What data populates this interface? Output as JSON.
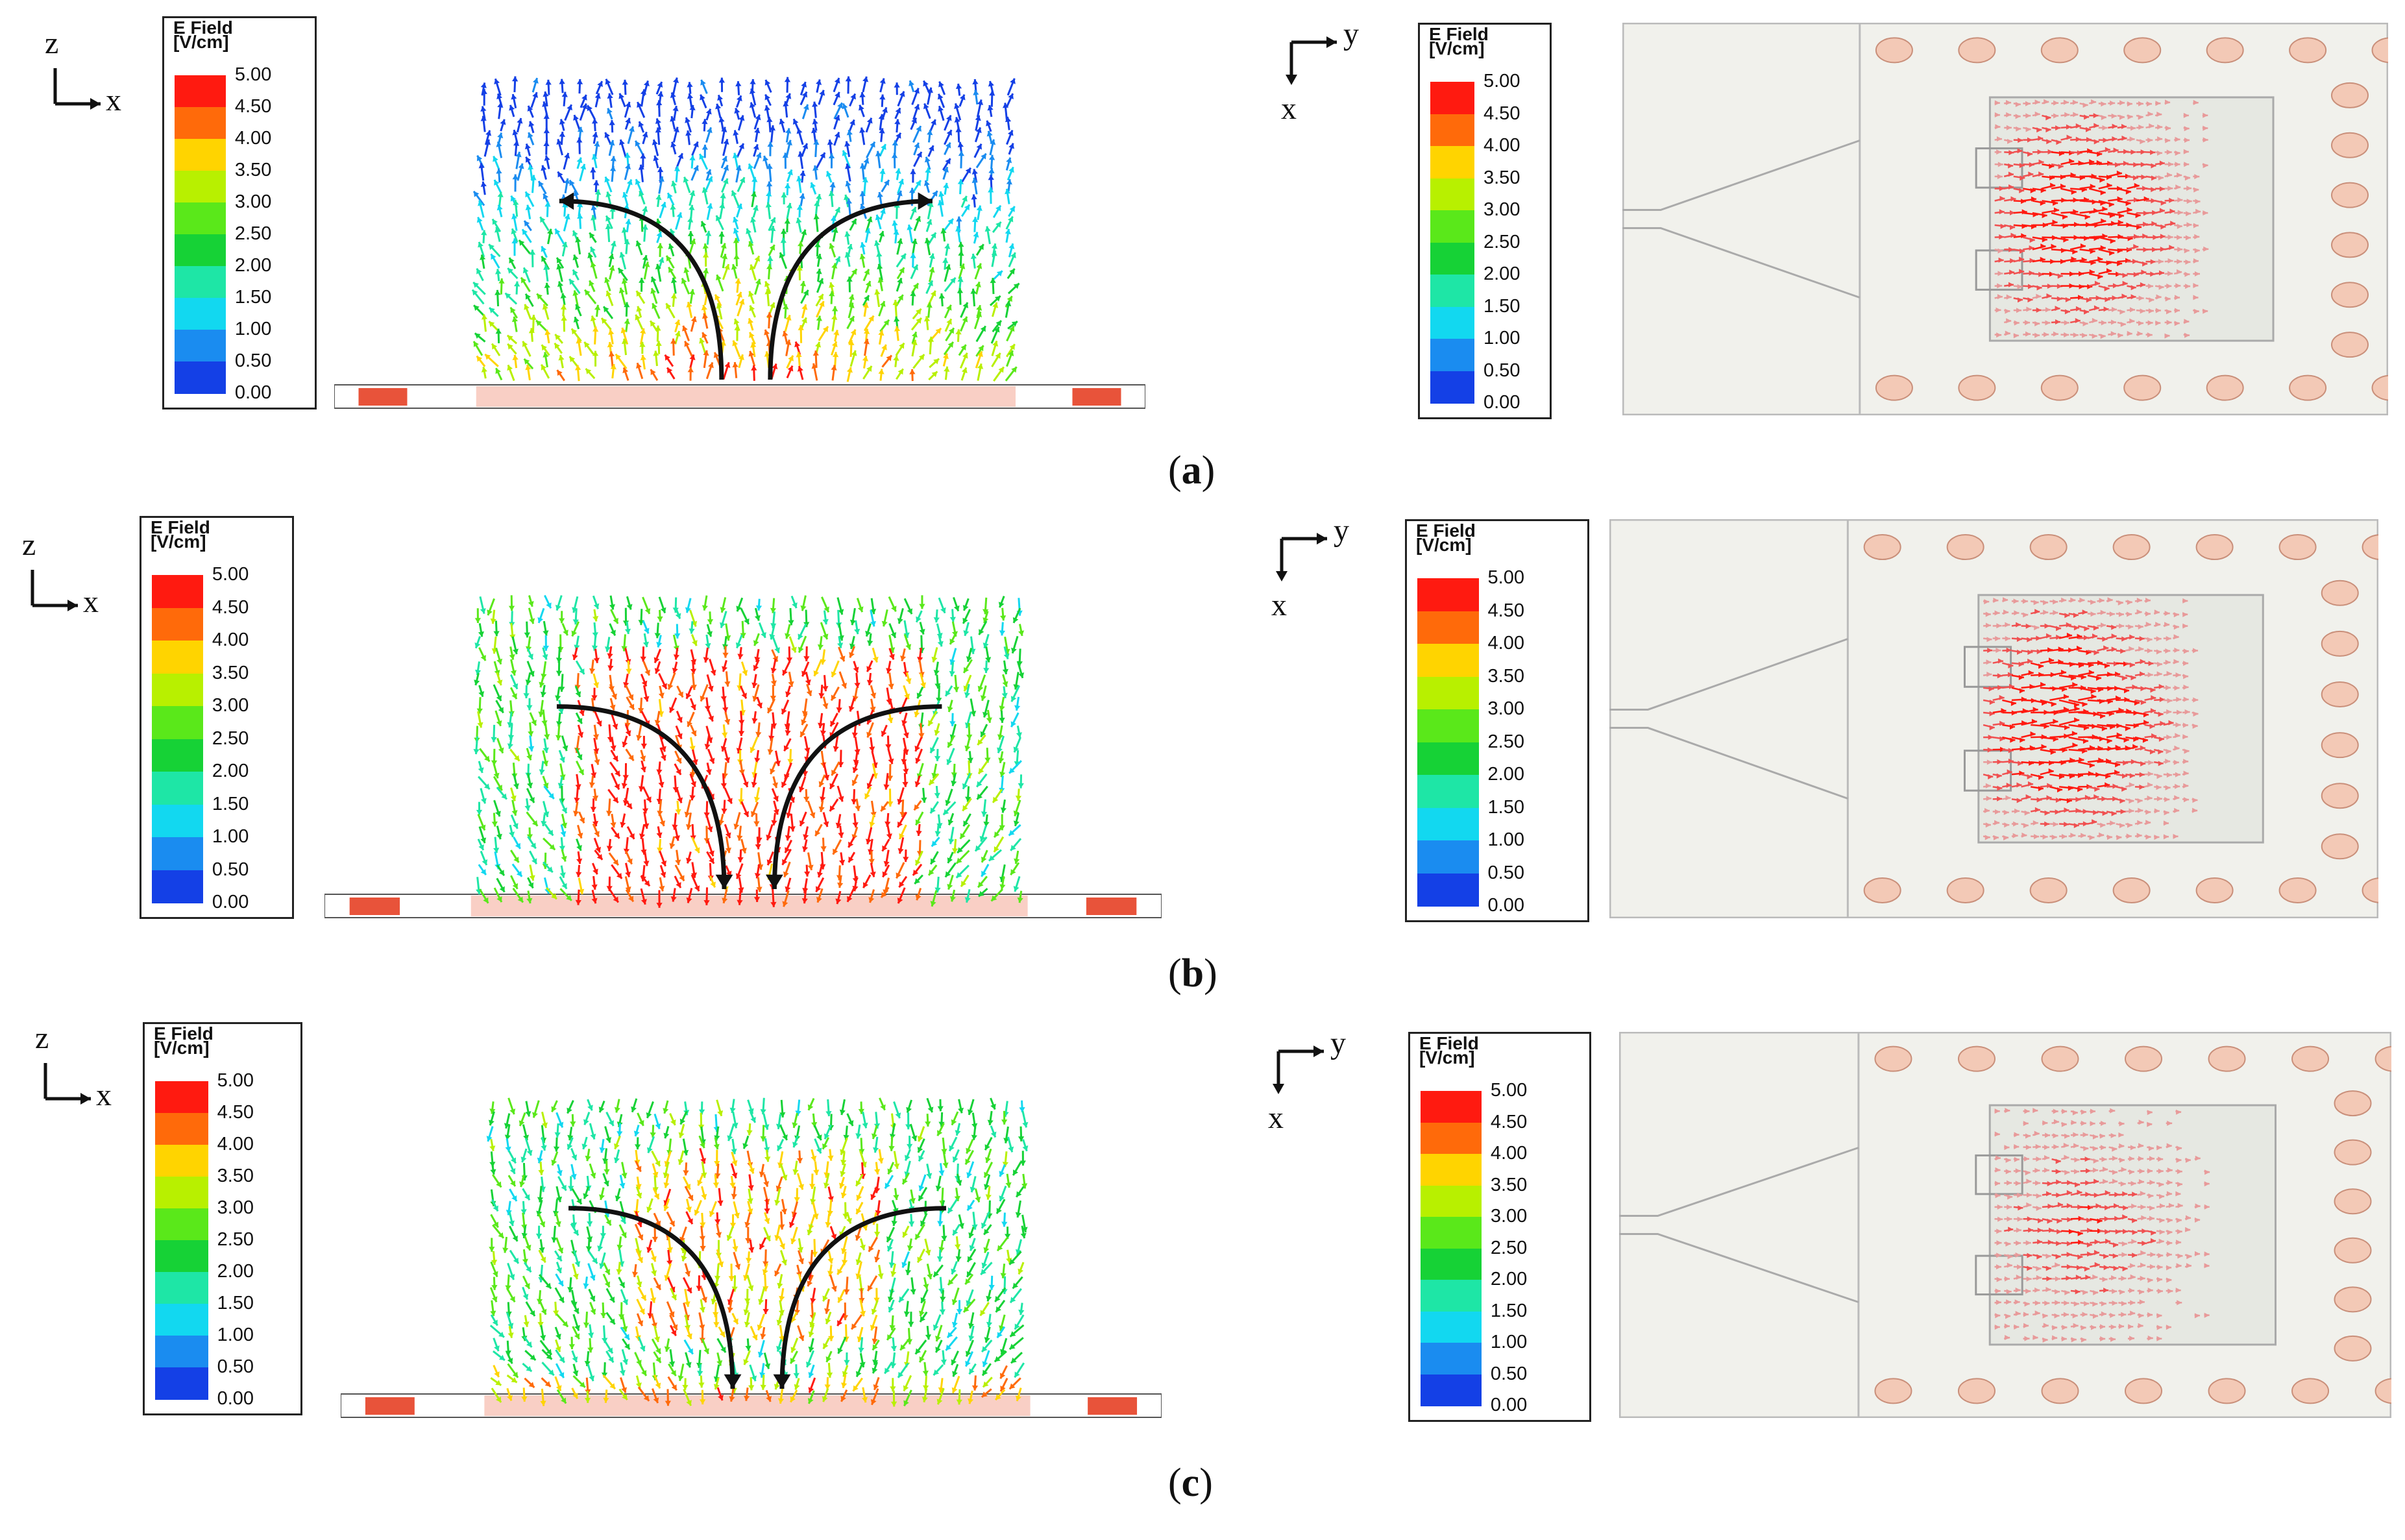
{
  "figure": {
    "legend": {
      "title_line1": "E Field",
      "title_line2": "[V/cm]",
      "ticks": [
        "5.00",
        "4.50",
        "4.00",
        "3.50",
        "3.00",
        "2.50",
        "2.00",
        "1.50",
        "1.00",
        "0.50",
        "0.00"
      ],
      "colors": [
        "#ff1a10",
        "#ff6a0a",
        "#ffd400",
        "#b8f000",
        "#5ae81a",
        "#16d236",
        "#1ee6a6",
        "#12d8f0",
        "#1a8cf0",
        "#1440e6"
      ]
    },
    "side_axes": {
      "vertical": "z",
      "horizontal": "x"
    },
    "top_axes": {
      "vertical": "x",
      "horizontal": "y"
    },
    "rows": [
      {
        "id": "a",
        "caption_open": "(",
        "caption_letter": "a",
        "caption_close": ")",
        "side_arrows": "outward"
      },
      {
        "id": "b",
        "caption_open": "(",
        "caption_letter": "b",
        "caption_close": ")",
        "side_arrows": "inward"
      },
      {
        "id": "c",
        "caption_open": "(",
        "caption_letter": "c",
        "caption_close": ")",
        "side_arrows": "inward"
      }
    ]
  }
}
